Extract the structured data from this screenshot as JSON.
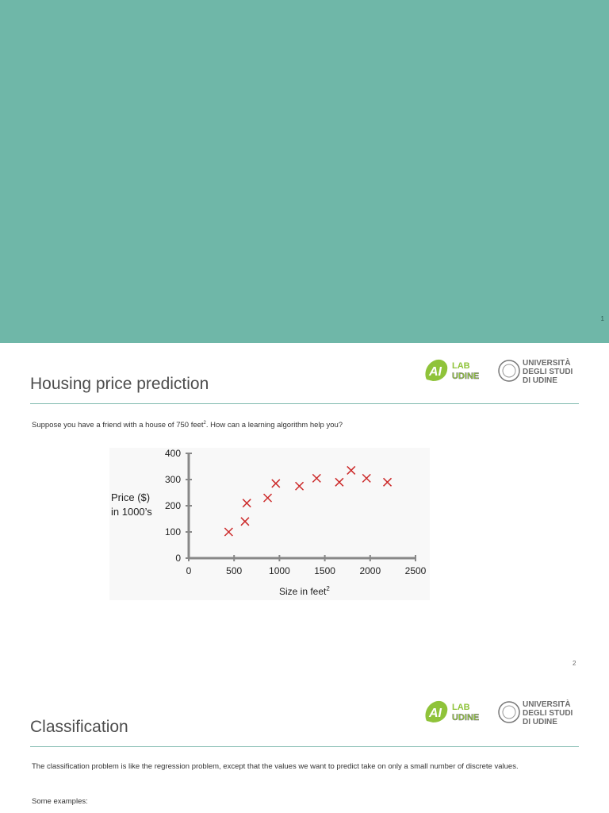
{
  "slide1": {
    "page_number": "1",
    "bg_color": "#6fb7a8"
  },
  "slide2": {
    "title": "Housing price prediction",
    "body_prefix": "Suppose you have a friend with a house of 750 feet",
    "body_sup": "2",
    "body_suffix": ".  How can a learning algorithm help you?",
    "page_number": "2"
  },
  "logo": {
    "lab_line1": "LAB",
    "lab_line2": "UDINE",
    "uni_line1": "UNIVERSITÀ",
    "uni_line2": "DEGLI STUDI",
    "uni_line3": "DI UDINE",
    "ai_mark": "AI",
    "accent_color": "#8fc33a"
  },
  "slide3": {
    "title": "Classification",
    "body1": "The classification problem is like the regression problem, except that the values we want to predict take on only a small number of discrete values.",
    "body2": "Some examples:"
  },
  "chart_data": {
    "type": "scatter",
    "ylabel_line1": "Price ($)",
    "ylabel_line2": "in 1000’s",
    "xlabel": "Size in feet",
    "xlabel_sup": "2",
    "xlim": [
      0,
      2500
    ],
    "ylim": [
      0,
      400
    ],
    "xticks": [
      0,
      500,
      1000,
      1500,
      2000,
      2500
    ],
    "yticks": [
      0,
      100,
      200,
      300,
      400
    ],
    "marker_color": "#cc2a2a",
    "points": [
      {
        "x": 440,
        "y": 100
      },
      {
        "x": 620,
        "y": 140
      },
      {
        "x": 640,
        "y": 210
      },
      {
        "x": 870,
        "y": 230
      },
      {
        "x": 960,
        "y": 285
      },
      {
        "x": 1220,
        "y": 275
      },
      {
        "x": 1410,
        "y": 305
      },
      {
        "x": 1660,
        "y": 290
      },
      {
        "x": 1790,
        "y": 335
      },
      {
        "x": 1960,
        "y": 305
      },
      {
        "x": 2190,
        "y": 290
      }
    ]
  }
}
